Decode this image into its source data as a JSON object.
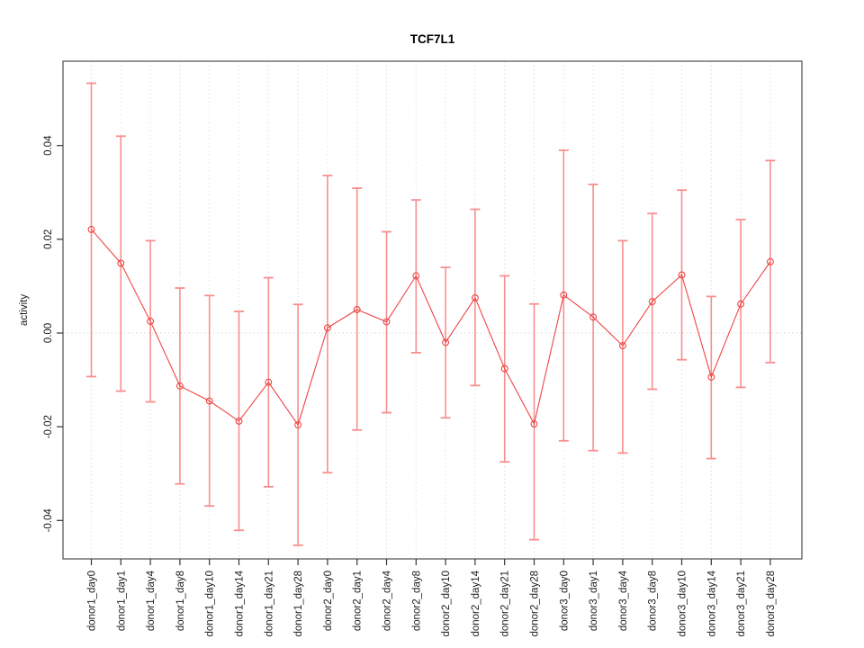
{
  "window": {
    "title": "TCF7L1"
  },
  "chart_data": {
    "type": "line",
    "title": "TCF7L1",
    "xlabel": "",
    "ylabel": "activity",
    "ylim": [
      -0.0482,
      0.058
    ],
    "yticks": [
      -0.04,
      -0.02,
      0,
      0.02,
      0.04
    ],
    "ytick_labels": [
      "-0.04",
      "-0.02",
      "0.00",
      "0.02",
      "0.04"
    ],
    "grid": {
      "vertical_per_category": true,
      "horizontal_zero_line": true,
      "style": "dotted"
    },
    "legend_position": "none",
    "marker": "open-circle",
    "error_bars": true,
    "categories": [
      "donor1_day0",
      "donor1_day1",
      "donor1_day4",
      "donor1_day8",
      "donor1_day10",
      "donor1_day14",
      "donor1_day21",
      "donor1_day28",
      "donor2_day0",
      "donor2_day1",
      "donor2_day4",
      "donor2_day8",
      "donor2_day10",
      "donor2_day14",
      "donor2_day21",
      "donor2_day28",
      "donor3_day0",
      "donor3_day1",
      "donor3_day4",
      "donor3_day8",
      "donor3_day10",
      "donor3_day14",
      "donor3_day21",
      "donor3_day28"
    ],
    "series": [
      {
        "name": "activity",
        "values": [
          0.0221,
          0.0149,
          0.0025,
          -0.0113,
          -0.0145,
          -0.0188,
          -0.0105,
          -0.0196,
          0.0011,
          0.005,
          0.0024,
          0.0122,
          -0.002,
          0.0075,
          -0.0076,
          -0.0194,
          0.0081,
          0.0034,
          -0.0027,
          0.0067,
          0.0124,
          -0.0094,
          0.0062,
          0.0152
        ],
        "error_low": [
          -0.0093,
          -0.0124,
          -0.0147,
          -0.0322,
          -0.0369,
          -0.0421,
          -0.0328,
          -0.0453,
          -0.0298,
          -0.0207,
          -0.017,
          -0.0042,
          -0.0181,
          -0.0112,
          -0.0275,
          -0.0441,
          -0.023,
          -0.0251,
          -0.0256,
          -0.012,
          -0.0057,
          -0.0268,
          -0.0116,
          -0.0063
        ],
        "error_high": [
          0.0533,
          0.042,
          0.0197,
          0.0096,
          0.008,
          0.0046,
          0.0118,
          0.0061,
          0.0336,
          0.0309,
          0.0216,
          0.0284,
          0.014,
          0.0264,
          0.0122,
          0.0062,
          0.039,
          0.0317,
          0.0197,
          0.0255,
          0.0305,
          0.0078,
          0.0242,
          0.0368
        ]
      }
    ],
    "colors": {
      "error_bar": "#f98e8e",
      "line": "#ee4545",
      "point": "#ee4545",
      "grid": "#e2e2e2",
      "zero_line": "#d6d6d6",
      "box": "#4d4d4d",
      "tick": "#333333",
      "tick_text": "#1c1c1c",
      "title_text": "#000000",
      "background": "#ffffff"
    }
  }
}
